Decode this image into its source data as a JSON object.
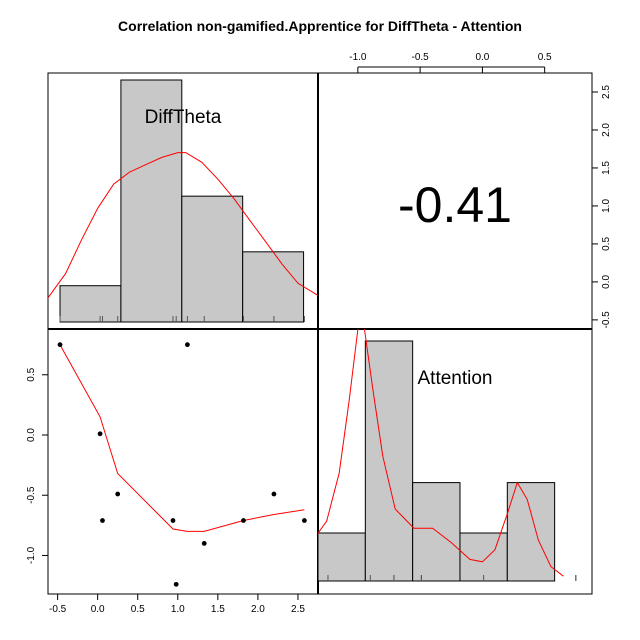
{
  "title": "Correlation non-gamified.Apprentice for DiffTheta - Attention",
  "colors": {
    "bar_fill": "#c8c8c8",
    "density": "#ff0000",
    "points": "#000000",
    "loess": "#ff0000"
  },
  "chart_data": {
    "type": "pairs",
    "title": "Correlation non-gamified.Apprentice for DiffTheta - Attention",
    "variables": [
      "DiffTheta",
      "Attention"
    ],
    "correlation": {
      "value": -0.41,
      "label": "-0.41"
    },
    "diff_theta_axis": {
      "lim": [
        -0.62,
        2.75
      ],
      "ticks": [
        -0.5,
        0.0,
        0.5,
        1.0,
        1.5,
        2.0,
        2.5
      ],
      "tick_labels": [
        "-0.5",
        "0.0",
        "0.5",
        "1.0",
        "1.5",
        "2.0",
        "2.5"
      ]
    },
    "attention_axis": {
      "lim": [
        -1.32,
        0.88
      ],
      "ticks": [
        -1.0,
        -0.5,
        0.0,
        0.5
      ],
      "tick_labels": [
        "-1.0",
        "-0.5",
        "0.0",
        "0.5"
      ]
    },
    "points": [
      {
        "x": -0.47,
        "y": 0.75
      },
      {
        "x": 0.03,
        "y": 0.01
      },
      {
        "x": 0.06,
        "y": -0.71
      },
      {
        "x": 0.25,
        "y": -0.49
      },
      {
        "x": 0.94,
        "y": -0.71
      },
      {
        "x": 0.98,
        "y": -1.24
      },
      {
        "x": 1.12,
        "y": 0.75
      },
      {
        "x": 1.33,
        "y": -0.9
      },
      {
        "x": 1.82,
        "y": -0.71
      },
      {
        "x": 2.2,
        "y": -0.49
      },
      {
        "x": 2.58,
        "y": -0.71
      }
    ],
    "loess_line": [
      {
        "x": -0.47,
        "y": 0.75
      },
      {
        "x": 0.03,
        "y": 0.15
      },
      {
        "x": 0.25,
        "y": -0.32
      },
      {
        "x": 0.94,
        "y": -0.78
      },
      {
        "x": 1.12,
        "y": -0.8
      },
      {
        "x": 1.33,
        "y": -0.8
      },
      {
        "x": 1.82,
        "y": -0.71
      },
      {
        "x": 2.2,
        "y": -0.66
      },
      {
        "x": 2.58,
        "y": -0.62
      }
    ],
    "diff_theta_hist": {
      "breaks": [
        -0.47,
        0.29,
        1.05,
        1.81,
        2.57
      ],
      "heights": [
        0.15,
        1.0,
        0.52,
        0.29
      ]
    },
    "diff_theta_density": [
      {
        "x": -0.62,
        "h": 0.1
      },
      {
        "x": -0.4,
        "h": 0.2
      },
      {
        "x": -0.2,
        "h": 0.34
      },
      {
        "x": 0.0,
        "h": 0.47
      },
      {
        "x": 0.2,
        "h": 0.57
      },
      {
        "x": 0.4,
        "h": 0.62
      },
      {
        "x": 0.6,
        "h": 0.65
      },
      {
        "x": 0.8,
        "h": 0.68
      },
      {
        "x": 1.0,
        "h": 0.7
      },
      {
        "x": 1.1,
        "h": 0.7
      },
      {
        "x": 1.3,
        "h": 0.66
      },
      {
        "x": 1.5,
        "h": 0.59
      },
      {
        "x": 1.7,
        "h": 0.51
      },
      {
        "x": 1.9,
        "h": 0.42
      },
      {
        "x": 2.1,
        "h": 0.33
      },
      {
        "x": 2.3,
        "h": 0.24
      },
      {
        "x": 2.5,
        "h": 0.16
      },
      {
        "x": 2.75,
        "h": 0.11
      }
    ],
    "attention_hist": {
      "breaks": [
        -1.32,
        -0.94,
        -0.56,
        -0.18,
        0.2,
        0.58
      ],
      "heights": [
        0.2,
        1.0,
        0.41,
        0.2,
        0.41
      ]
    },
    "attention_density": [
      {
        "x": -1.55,
        "h": 0.05
      },
      {
        "x": -1.4,
        "h": 0.14
      },
      {
        "x": -1.25,
        "h": 0.25
      },
      {
        "x": -1.15,
        "h": 0.45
      },
      {
        "x": -1.07,
        "h": 0.75
      },
      {
        "x": -1.0,
        "h": 1.05
      },
      {
        "x": -0.95,
        "h": 1.06
      },
      {
        "x": -0.88,
        "h": 0.8
      },
      {
        "x": -0.8,
        "h": 0.52
      },
      {
        "x": -0.7,
        "h": 0.3
      },
      {
        "x": -0.55,
        "h": 0.22
      },
      {
        "x": -0.4,
        "h": 0.22
      },
      {
        "x": -0.25,
        "h": 0.16
      },
      {
        "x": -0.1,
        "h": 0.09
      },
      {
        "x": 0.0,
        "h": 0.08
      },
      {
        "x": 0.1,
        "h": 0.13
      },
      {
        "x": 0.2,
        "h": 0.28
      },
      {
        "x": 0.28,
        "h": 0.41
      },
      {
        "x": 0.36,
        "h": 0.34
      },
      {
        "x": 0.45,
        "h": 0.17
      },
      {
        "x": 0.55,
        "h": 0.06
      },
      {
        "x": 0.65,
        "h": 0.02
      }
    ],
    "grid": false
  }
}
